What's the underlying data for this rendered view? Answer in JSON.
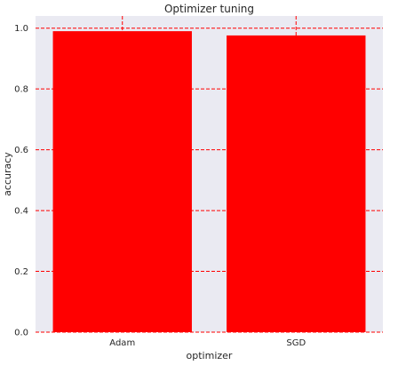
{
  "chart_data": {
    "type": "bar",
    "title": "Optimizer tuning",
    "xlabel": "optimizer",
    "ylabel": "accuracy",
    "categories": [
      "Adam",
      "SGD"
    ],
    "values": [
      0.99,
      0.976
    ],
    "ylim": [
      0,
      1.04
    ],
    "yticks": [
      "0.0",
      "0.2",
      "0.4",
      "0.6",
      "0.8",
      "1.0"
    ],
    "grid": true,
    "colors": {
      "bar": "#ff0000",
      "grid": "#ff0000",
      "plot_background": "#eaeaf2"
    }
  }
}
